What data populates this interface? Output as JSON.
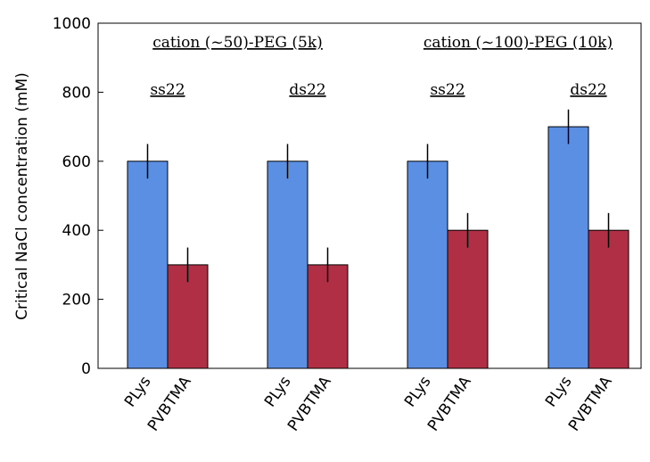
{
  "chart_data": {
    "type": "grouped_bar",
    "ylabel": "Critical NaCl concentration (mM)",
    "categories": [
      "ss22",
      "ds22",
      "ss22",
      "ds22"
    ],
    "annotations": [
      "cation (~50)-PEG (5k)",
      "cation (~100)-PEG (10k)"
    ],
    "series": [
      {
        "name": "PLys",
        "color": "#5b8fe4",
        "values": [
          600,
          600,
          600,
          700
        ],
        "errors": [
          50,
          50,
          50,
          50
        ]
      },
      {
        "name": "PVBTMA",
        "color": "#b02f45",
        "values": [
          300,
          300,
          400,
          400
        ],
        "errors": [
          50,
          50,
          50,
          50
        ]
      }
    ],
    "ylim": [
      0,
      1000
    ],
    "yticks": [
      0,
      200,
      400,
      600,
      800,
      1000
    ]
  }
}
